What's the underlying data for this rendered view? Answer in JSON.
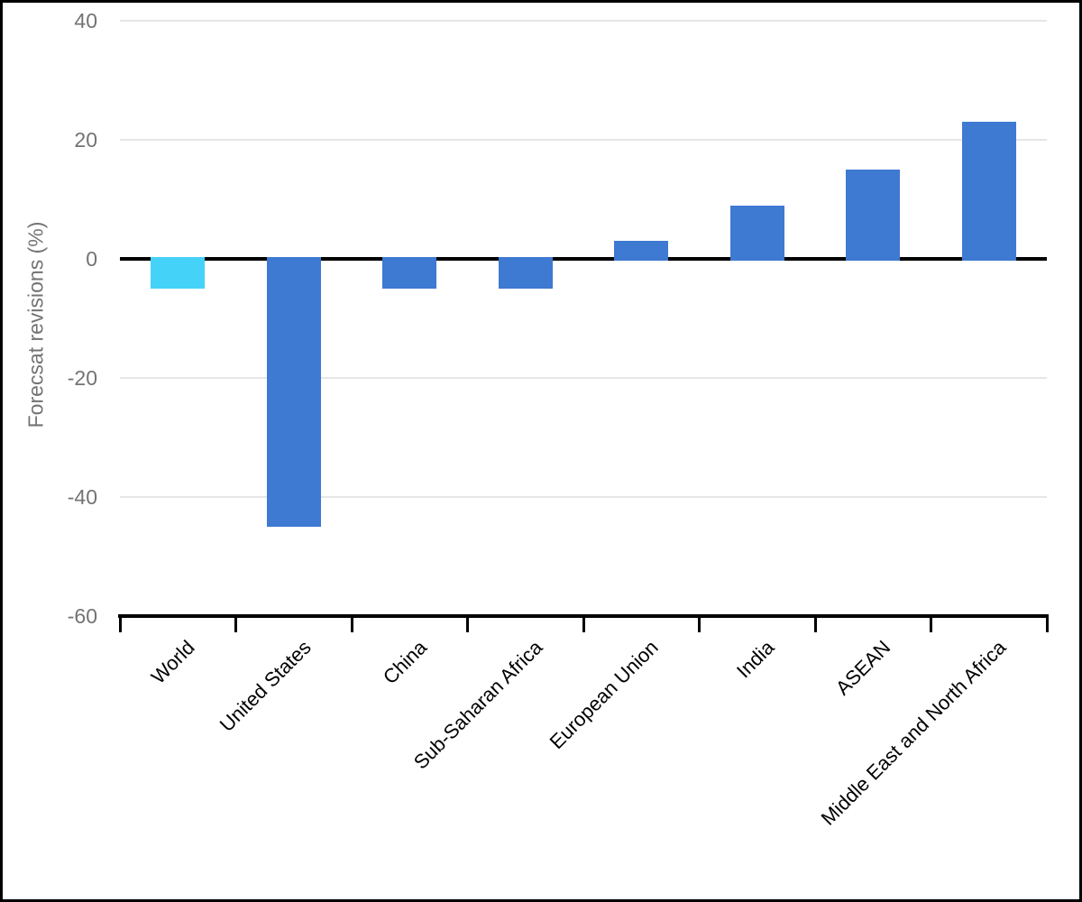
{
  "chart_data": {
    "type": "bar",
    "categories": [
      "World",
      "United States",
      "China",
      "Sub-Saharan Africa",
      "European Union",
      "India",
      "ASEAN",
      "Middle East and North Africa"
    ],
    "values": [
      -5,
      -45,
      -5,
      -5,
      3,
      9,
      15,
      23
    ],
    "bar_colors": [
      "#45D2F9",
      "#3E79D2",
      "#3E79D2",
      "#3E79D2",
      "#3E79D2",
      "#3E79D2",
      "#3E79D2",
      "#3E79D2"
    ],
    "title": "",
    "xlabel": "",
    "ylabel": "Forecsat revisions (%)",
    "ylim": [
      -60,
      40
    ],
    "yticks": [
      40,
      20,
      0,
      -20,
      -40,
      -60
    ],
    "grid": true,
    "legend_position": "none"
  },
  "colors": {
    "grid_line": "#E6E6E6",
    "zero_line": "#000000",
    "axis_line": "#000000",
    "tick_label": "#737373",
    "category_label": "#000000",
    "y_axis_title": "#737373",
    "background": "#FFFFFF",
    "border": "#000000"
  }
}
